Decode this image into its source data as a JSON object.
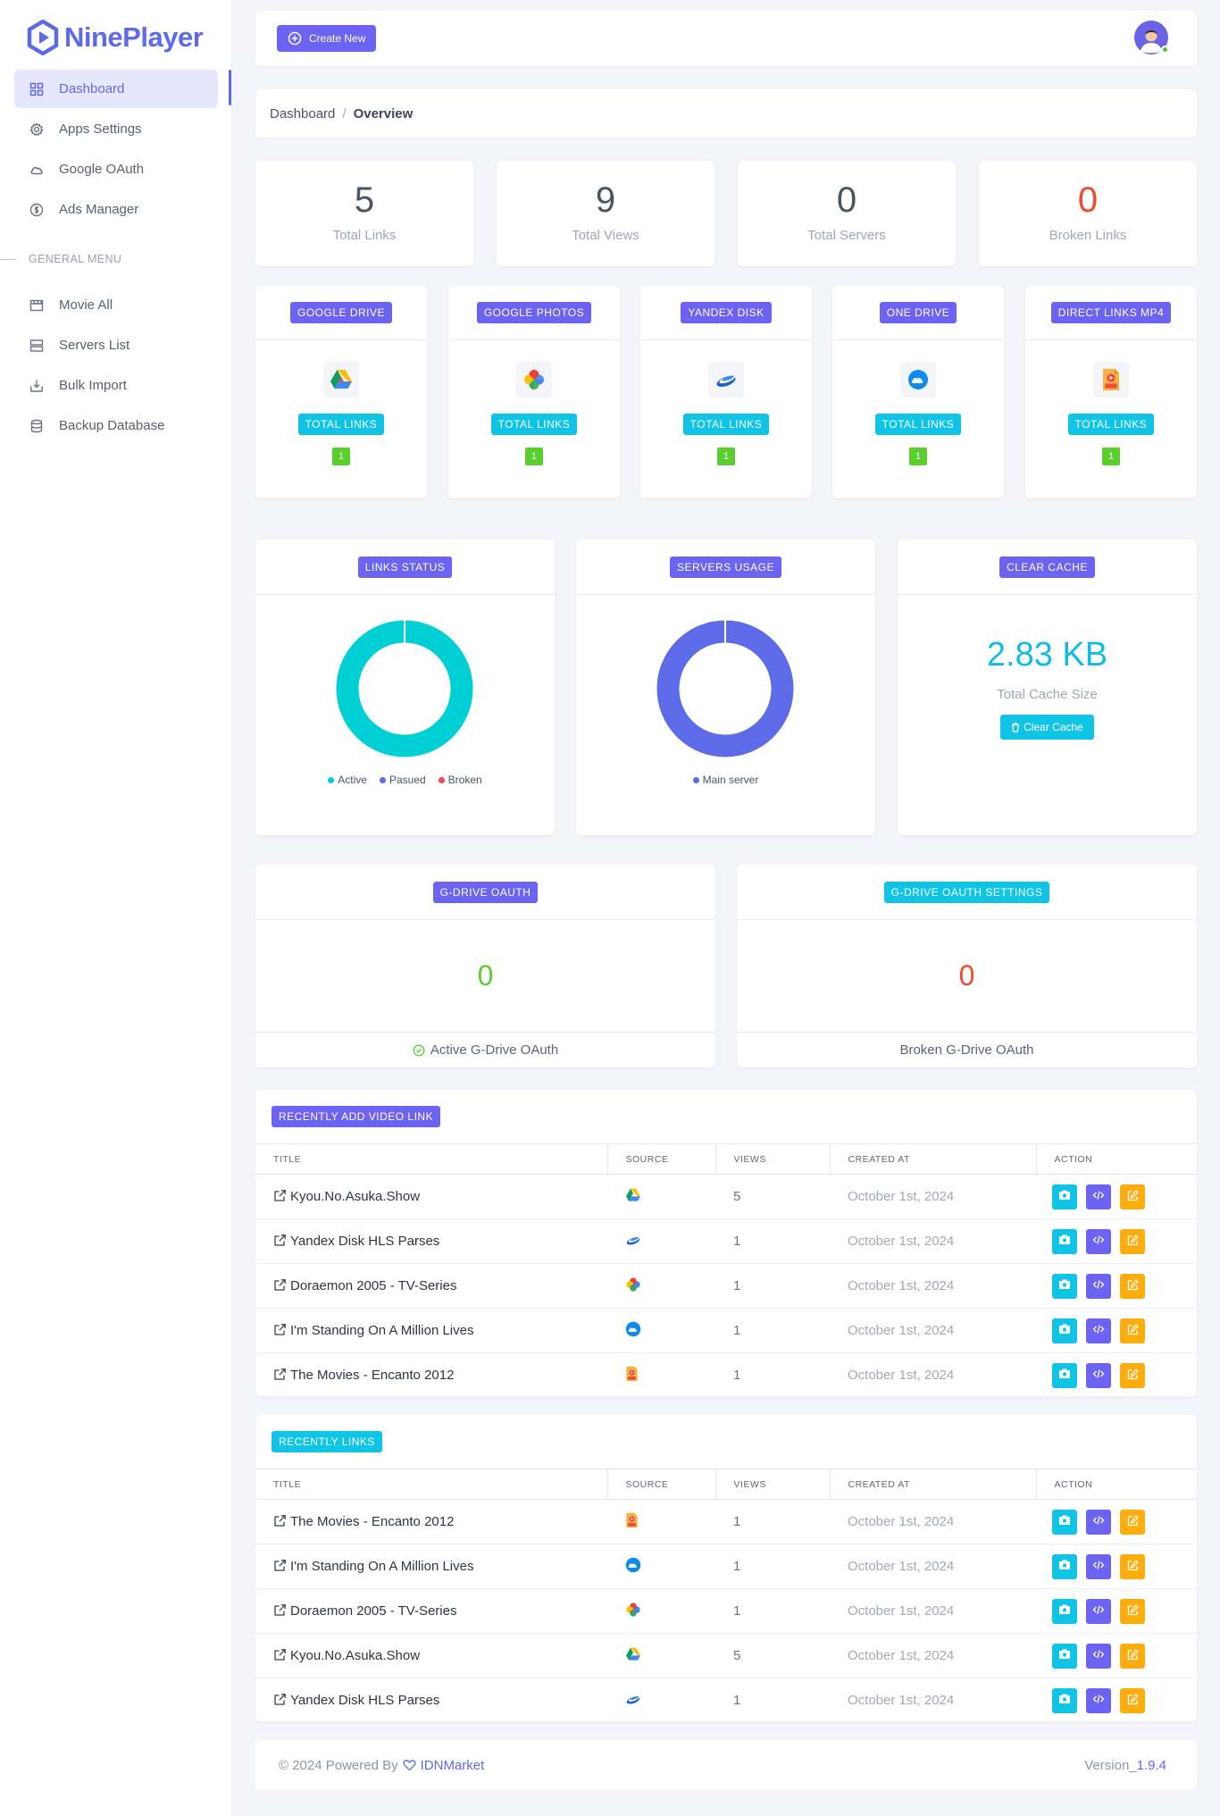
{
  "app": {
    "name": "NinePlayer"
  },
  "sidebar": {
    "items": [
      {
        "label": "Dashboard"
      },
      {
        "label": "Apps Settings"
      },
      {
        "label": "Google OAuth"
      },
      {
        "label": "Ads Manager"
      }
    ],
    "menu_header": "GENERAL MENU",
    "general_items": [
      {
        "label": "Movie All"
      },
      {
        "label": "Servers List"
      },
      {
        "label": "Bulk Import"
      },
      {
        "label": "Backup Database"
      }
    ]
  },
  "topbar": {
    "create_label": "Create New"
  },
  "breadcrumb": {
    "root": "Dashboard",
    "separator": "/",
    "current": "Overview"
  },
  "stats": [
    {
      "value": "5",
      "label": "Total Links",
      "color": "#4a5563"
    },
    {
      "value": "9",
      "label": "Total Views",
      "color": "#4a5563"
    },
    {
      "value": "0",
      "label": "Total Servers",
      "color": "#4a5563"
    },
    {
      "value": "0",
      "label": "Broken Links",
      "color": "#ef4b2c"
    }
  ],
  "sources": [
    {
      "title": "GOOGLE DRIVE",
      "icon": "google-drive-icon",
      "total_label": "TOTAL LINKS",
      "count": "1"
    },
    {
      "title": "GOOGLE PHOTOS",
      "icon": "google-photos-icon",
      "total_label": "TOTAL LINKS",
      "count": "1"
    },
    {
      "title": "YANDEX DISK",
      "icon": "yandex-disk-icon",
      "total_label": "TOTAL LINKS",
      "count": "1"
    },
    {
      "title": "ONE DRIVE",
      "icon": "one-drive-icon",
      "total_label": "TOTAL LINKS",
      "count": "1"
    },
    {
      "title": "DIRECT LINKS MP4",
      "icon": "mp4-file-icon",
      "total_label": "TOTAL LINKS",
      "count": "1"
    }
  ],
  "links_status": {
    "title": "LINKS STATUS",
    "legend": [
      {
        "label": "Active",
        "color": "#00cfd5"
      },
      {
        "label": "Pasued",
        "color": "#5d6be8"
      },
      {
        "label": "Broken",
        "color": "#ef4b4b"
      }
    ]
  },
  "servers_usage": {
    "title": "SERVERS USAGE",
    "legend": [
      {
        "label": "Main server",
        "color": "#5d6be8"
      }
    ]
  },
  "chart_data": [
    {
      "type": "pie",
      "categories": [
        "Active",
        "Pasued",
        "Broken"
      ],
      "values": [
        5,
        0,
        0
      ]
    },
    {
      "type": "pie",
      "categories": [
        "Main server"
      ],
      "values": [
        1
      ]
    }
  ],
  "clear_cache": {
    "title": "CLEAR CACHE",
    "size": "2.83 KB",
    "label": "Total Cache Size",
    "button": "Clear Cache"
  },
  "gdrive_oauth": {
    "title": "G-DRIVE OAUTH",
    "value": "0",
    "footer": "Active G-Drive OAuth"
  },
  "gdrive_oauth_settings": {
    "title": "G-DRIVE OAUTH SETTINGS",
    "value": "0",
    "footer": "Broken G-Drive OAuth"
  },
  "table_columns": [
    "TITLE",
    "SOURCE",
    "VIEWS",
    "CREATED AT",
    "ACTION"
  ],
  "recent_videos": {
    "title": "RECENTLY ADD VIDEO LINK",
    "rows": [
      {
        "title": "Kyou.No.Asuka.Show",
        "source": "google-drive-icon",
        "views": "5",
        "created": "October 1st, 2024"
      },
      {
        "title": "Yandex Disk HLS Parses",
        "source": "yandex-disk-icon",
        "views": "1",
        "created": "October 1st, 2024"
      },
      {
        "title": "Doraemon 2005 - TV-Series",
        "source": "google-photos-icon",
        "views": "1",
        "created": "October 1st, 2024"
      },
      {
        "title": "I'm Standing On A Million Lives",
        "source": "one-drive-icon",
        "views": "1",
        "created": "October 1st, 2024"
      },
      {
        "title": "The Movies - Encanto 2012",
        "source": "mp4-file-icon",
        "views": "1",
        "created": "October 1st, 2024"
      }
    ]
  },
  "recent_links": {
    "title": "RECENTLY LINKS",
    "rows": [
      {
        "title": "The Movies - Encanto 2012",
        "source": "mp4-file-icon",
        "views": "1",
        "created": "October 1st, 2024"
      },
      {
        "title": "I'm Standing On A Million Lives",
        "source": "one-drive-icon",
        "views": "1",
        "created": "October 1st, 2024"
      },
      {
        "title": "Doraemon 2005 - TV-Series",
        "source": "google-photos-icon",
        "views": "1",
        "created": "October 1st, 2024"
      },
      {
        "title": "Kyou.No.Asuka.Show",
        "source": "google-drive-icon",
        "views": "5",
        "created": "October 1st, 2024"
      },
      {
        "title": "Yandex Disk HLS Parses",
        "source": "yandex-disk-icon",
        "views": "1",
        "created": "October 1st, 2024"
      }
    ]
  },
  "footer": {
    "copyright": "© 2024 Powered By",
    "brand": "IDNMarket",
    "version_label": "Version_",
    "version": "1.9.4"
  }
}
